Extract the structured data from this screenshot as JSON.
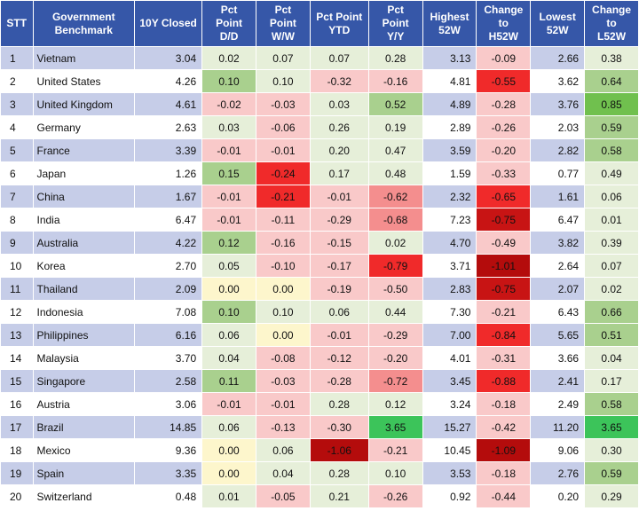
{
  "headers": [
    "STT",
    "Government\nBenchmark",
    "10Y Closed",
    "Pct\nPoint\nD/D",
    "Pct\nPoint\nW/W",
    "Pct Point\nYTD",
    "Pct\nPoint\nY/Y",
    "Highest\n52W",
    "Change\nto\nH52W",
    "Lowest\n52W",
    "Change\nto\nL52W"
  ],
  "colors": {
    "header_bg": "#3657a8",
    "blue_row": "#c6cde8",
    "white_row": "#ffffff",
    "light_green": "#e6efd9",
    "green": "#a9d08e",
    "green_strong": "#70c04e",
    "bright_green": "#3cc45a",
    "light_red": "#f9c9c9",
    "red_mid": "#f48e8e",
    "red": "#f02a2a",
    "red_dark": "#c81414",
    "dark_red": "#b40c0c",
    "yellow": "#fdf6cc"
  },
  "rows": [
    {
      "stt": "1",
      "name": "Vietnam",
      "close": "3.04",
      "dd": "0.02",
      "ww": "0.07",
      "ytd": "0.07",
      "yy": "0.28",
      "h52": "3.13",
      "ch52": "-0.09",
      "l52": "2.66",
      "cl52": "0.38"
    },
    {
      "stt": "2",
      "name": "United States",
      "close": "4.26",
      "dd": "0.10",
      "ww": "0.10",
      "ytd": "-0.32",
      "yy": "-0.16",
      "h52": "4.81",
      "ch52": "-0.55",
      "l52": "3.62",
      "cl52": "0.64"
    },
    {
      "stt": "3",
      "name": "United Kingdom",
      "close": "4.61",
      "dd": "-0.02",
      "ww": "-0.03",
      "ytd": "0.03",
      "yy": "0.52",
      "h52": "4.89",
      "ch52": "-0.28",
      "l52": "3.76",
      "cl52": "0.85"
    },
    {
      "stt": "4",
      "name": "Germany",
      "close": "2.63",
      "dd": "0.03",
      "ww": "-0.06",
      "ytd": "0.26",
      "yy": "0.19",
      "h52": "2.89",
      "ch52": "-0.26",
      "l52": "2.03",
      "cl52": "0.59"
    },
    {
      "stt": "5",
      "name": "France",
      "close": "3.39",
      "dd": "-0.01",
      "ww": "-0.01",
      "ytd": "0.20",
      "yy": "0.47",
      "h52": "3.59",
      "ch52": "-0.20",
      "l52": "2.82",
      "cl52": "0.58"
    },
    {
      "stt": "6",
      "name": "Japan",
      "close": "1.26",
      "dd": "0.15",
      "ww": "-0.24",
      "ytd": "0.17",
      "yy": "0.48",
      "h52": "1.59",
      "ch52": "-0.33",
      "l52": "0.77",
      "cl52": "0.49"
    },
    {
      "stt": "7",
      "name": "China",
      "close": "1.67",
      "dd": "-0.01",
      "ww": "-0.21",
      "ytd": "-0.01",
      "yy": "-0.62",
      "h52": "2.32",
      "ch52": "-0.65",
      "l52": "1.61",
      "cl52": "0.06"
    },
    {
      "stt": "8",
      "name": "India",
      "close": "6.47",
      "dd": "-0.01",
      "ww": "-0.11",
      "ytd": "-0.29",
      "yy": "-0.68",
      "h52": "7.23",
      "ch52": "-0.75",
      "l52": "6.47",
      "cl52": "0.01"
    },
    {
      "stt": "9",
      "name": "Australia",
      "close": "4.22",
      "dd": "0.12",
      "ww": "-0.16",
      "ytd": "-0.15",
      "yy": "0.02",
      "h52": "4.70",
      "ch52": "-0.49",
      "l52": "3.82",
      "cl52": "0.39"
    },
    {
      "stt": "10",
      "name": "Korea",
      "close": "2.70",
      "dd": "0.05",
      "ww": "-0.10",
      "ytd": "-0.17",
      "yy": "-0.79",
      "h52": "3.71",
      "ch52": "-1.01",
      "l52": "2.64",
      "cl52": "0.07"
    },
    {
      "stt": "11",
      "name": "Thailand",
      "close": "2.09",
      "dd": "0.00",
      "ww": "0.00",
      "ytd": "-0.19",
      "yy": "-0.50",
      "h52": "2.83",
      "ch52": "-0.75",
      "l52": "2.07",
      "cl52": "0.02"
    },
    {
      "stt": "12",
      "name": "Indonesia",
      "close": "7.08",
      "dd": "0.10",
      "ww": "0.10",
      "ytd": "0.06",
      "yy": "0.44",
      "h52": "7.30",
      "ch52": "-0.21",
      "l52": "6.43",
      "cl52": "0.66"
    },
    {
      "stt": "13",
      "name": "Philippines",
      "close": "6.16",
      "dd": "0.06",
      "ww": "0.00",
      "ytd": "-0.01",
      "yy": "-0.29",
      "h52": "7.00",
      "ch52": "-0.84",
      "l52": "5.65",
      "cl52": "0.51"
    },
    {
      "stt": "14",
      "name": "Malaysia",
      "close": "3.70",
      "dd": "0.04",
      "ww": "-0.08",
      "ytd": "-0.12",
      "yy": "-0.20",
      "h52": "4.01",
      "ch52": "-0.31",
      "l52": "3.66",
      "cl52": "0.04"
    },
    {
      "stt": "15",
      "name": "Singapore",
      "close": "2.58",
      "dd": "0.11",
      "ww": "-0.03",
      "ytd": "-0.28",
      "yy": "-0.72",
      "h52": "3.45",
      "ch52": "-0.88",
      "l52": "2.41",
      "cl52": "0.17"
    },
    {
      "stt": "16",
      "name": "Austria",
      "close": "3.06",
      "dd": "-0.01",
      "ww": "-0.01",
      "ytd": "0.28",
      "yy": "0.12",
      "h52": "3.24",
      "ch52": "-0.18",
      "l52": "2.49",
      "cl52": "0.58"
    },
    {
      "stt": "17",
      "name": "Brazil",
      "close": "14.85",
      "dd": "0.06",
      "ww": "-0.13",
      "ytd": "-0.30",
      "yy": "3.65",
      "h52": "15.27",
      "ch52": "-0.42",
      "l52": "11.20",
      "cl52": "3.65"
    },
    {
      "stt": "18",
      "name": "Mexico",
      "close": "9.36",
      "dd": "0.00",
      "ww": "0.06",
      "ytd": "-1.06",
      "yy": "-0.21",
      "h52": "10.45",
      "ch52": "-1.09",
      "l52": "9.06",
      "cl52": "0.30"
    },
    {
      "stt": "19",
      "name": "Spain",
      "close": "3.35",
      "dd": "0.00",
      "ww": "0.04",
      "ytd": "0.28",
      "yy": "0.10",
      "h52": "3.53",
      "ch52": "-0.18",
      "l52": "2.76",
      "cl52": "0.59"
    },
    {
      "stt": "20",
      "name": "Switzerland",
      "close": "0.48",
      "dd": "0.01",
      "ww": "-0.05",
      "ytd": "0.21",
      "yy": "-0.26",
      "h52": "0.92",
      "ch52": "-0.44",
      "l52": "0.20",
      "cl52": "0.29"
    }
  ],
  "cell_colors": [
    {
      "dd": "light_green",
      "ww": "light_green",
      "ytd": "light_green",
      "yy": "light_green",
      "ch52": "light_red",
      "cl52": "light_green"
    },
    {
      "dd": "green",
      "ww": "light_green",
      "ytd": "light_red",
      "yy": "light_red",
      "ch52": "red",
      "cl52": "green"
    },
    {
      "dd": "light_red",
      "ww": "light_red",
      "ytd": "light_green",
      "yy": "green",
      "ch52": "light_red",
      "cl52": "green_strong"
    },
    {
      "dd": "light_green",
      "ww": "light_red",
      "ytd": "light_green",
      "yy": "light_green",
      "ch52": "light_red",
      "cl52": "green"
    },
    {
      "dd": "light_red",
      "ww": "light_red",
      "ytd": "light_green",
      "yy": "light_green",
      "ch52": "light_red",
      "cl52": "green"
    },
    {
      "dd": "green",
      "ww": "red",
      "ytd": "light_green",
      "yy": "light_green",
      "ch52": "light_red",
      "cl52": "light_green"
    },
    {
      "dd": "light_red",
      "ww": "red",
      "ytd": "light_red",
      "yy": "red_mid",
      "ch52": "red",
      "cl52": "light_green"
    },
    {
      "dd": "light_red",
      "ww": "light_red",
      "ytd": "light_red",
      "yy": "red_mid",
      "ch52": "red_dark",
      "cl52": "light_green"
    },
    {
      "dd": "green",
      "ww": "light_red",
      "ytd": "light_red",
      "yy": "light_green",
      "ch52": "light_red",
      "cl52": "light_green"
    },
    {
      "dd": "light_green",
      "ww": "light_red",
      "ytd": "light_red",
      "yy": "red",
      "ch52": "dark_red",
      "cl52": "light_green"
    },
    {
      "dd": "yellow",
      "ww": "yellow",
      "ytd": "light_red",
      "yy": "light_red",
      "ch52": "red_dark",
      "cl52": "light_green"
    },
    {
      "dd": "green",
      "ww": "light_green",
      "ytd": "light_green",
      "yy": "light_green",
      "ch52": "light_red",
      "cl52": "green"
    },
    {
      "dd": "light_green",
      "ww": "yellow",
      "ytd": "light_red",
      "yy": "light_red",
      "ch52": "red",
      "cl52": "green"
    },
    {
      "dd": "light_green",
      "ww": "light_red",
      "ytd": "light_red",
      "yy": "light_red",
      "ch52": "light_red",
      "cl52": "light_green"
    },
    {
      "dd": "green",
      "ww": "light_red",
      "ytd": "light_red",
      "yy": "red_mid",
      "ch52": "red",
      "cl52": "light_green"
    },
    {
      "dd": "light_red",
      "ww": "light_red",
      "ytd": "light_green",
      "yy": "light_green",
      "ch52": "light_red",
      "cl52": "green"
    },
    {
      "dd": "light_green",
      "ww": "light_red",
      "ytd": "light_red",
      "yy": "bright_green",
      "ch52": "light_red",
      "cl52": "bright_green"
    },
    {
      "dd": "yellow",
      "ww": "light_green",
      "ytd": "dark_red",
      "yy": "light_red",
      "ch52": "dark_red",
      "cl52": "light_green"
    },
    {
      "dd": "yellow",
      "ww": "light_green",
      "ytd": "light_green",
      "yy": "light_green",
      "ch52": "light_red",
      "cl52": "green"
    },
    {
      "dd": "light_green",
      "ww": "light_red",
      "ytd": "light_green",
      "yy": "light_red",
      "ch52": "light_red",
      "cl52": "light_green"
    }
  ]
}
